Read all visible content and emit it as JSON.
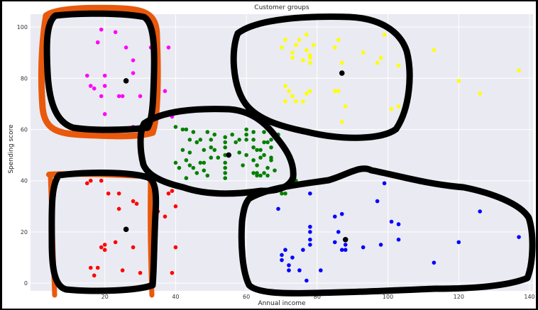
{
  "chart_data": {
    "type": "scatter",
    "title": "Customer groups",
    "xlabel": "Annual income",
    "ylabel": "Spending score",
    "xlim": [
      -1,
      141
    ],
    "ylim": [
      -3,
      105
    ],
    "xticks": [
      20,
      40,
      60,
      80,
      100,
      120,
      140
    ],
    "yticks": [
      0,
      20,
      40,
      60,
      80,
      100
    ],
    "grid": true,
    "background": "#eaeaf2",
    "annotation_color": "#000000",
    "highlight_color": "#e8590c",
    "series": [
      {
        "color": "#ff00ff",
        "points": [
          [
            19,
            99
          ],
          [
            23,
            98
          ],
          [
            18,
            94
          ],
          [
            26,
            92
          ],
          [
            33,
            92
          ],
          [
            38,
            92
          ],
          [
            28,
            87
          ],
          [
            20,
            81
          ],
          [
            15,
            81
          ],
          [
            17,
            76
          ],
          [
            28,
            82
          ],
          [
            34,
            82
          ],
          [
            20,
            77
          ],
          [
            16,
            77
          ],
          [
            19,
            73
          ],
          [
            24,
            73
          ],
          [
            25,
            73
          ],
          [
            30,
            73
          ],
          [
            34,
            73
          ],
          [
            37,
            75
          ],
          [
            20,
            66
          ],
          [
            28,
            61
          ],
          [
            39,
            65
          ]
        ]
      },
      {
        "color": "#ff0000",
        "points": [
          [
            15,
            39
          ],
          [
            16,
            40
          ],
          [
            19,
            40
          ],
          [
            21,
            35
          ],
          [
            24,
            35
          ],
          [
            38,
            35
          ],
          [
            39,
            36
          ],
          [
            24,
            29
          ],
          [
            28,
            32
          ],
          [
            29,
            31
          ],
          [
            35,
            28
          ],
          [
            37,
            26
          ],
          [
            20,
            13
          ],
          [
            20,
            15
          ],
          [
            23,
            16
          ],
          [
            19,
            14
          ],
          [
            28,
            14
          ],
          [
            33,
            15
          ],
          [
            34,
            17
          ],
          [
            40,
            30
          ],
          [
            16,
            6
          ],
          [
            18,
            6
          ],
          [
            25,
            5
          ],
          [
            30,
            4
          ],
          [
            33,
            4
          ],
          [
            17,
            3
          ],
          [
            40,
            14
          ],
          [
            39,
            4
          ]
        ]
      },
      {
        "color": "#008000",
        "points": [
          [
            40,
            61
          ],
          [
            42,
            60
          ],
          [
            43,
            60
          ],
          [
            44,
            56
          ],
          [
            45,
            59
          ],
          [
            46,
            55
          ],
          [
            47,
            56
          ],
          [
            48,
            52
          ],
          [
            49,
            59
          ],
          [
            50,
            56
          ],
          [
            51,
            58
          ],
          [
            42,
            52
          ],
          [
            43,
            48
          ],
          [
            44,
            51
          ],
          [
            45,
            45
          ],
          [
            46,
            43
          ],
          [
            47,
            47
          ],
          [
            48,
            47
          ],
          [
            49,
            42
          ],
          [
            50,
            49
          ],
          [
            51,
            52
          ],
          [
            40,
            47
          ],
          [
            41,
            45
          ],
          [
            43,
            41
          ],
          [
            44,
            46
          ],
          [
            46,
            55
          ],
          [
            48,
            44
          ],
          [
            50,
            53
          ],
          [
            52,
            49
          ],
          [
            54,
            50
          ],
          [
            54,
            47
          ],
          [
            54,
            45
          ],
          [
            54,
            43
          ],
          [
            54,
            41
          ],
          [
            54,
            53
          ],
          [
            54,
            55
          ],
          [
            54,
            57
          ],
          [
            56,
            58
          ],
          [
            57,
            55
          ],
          [
            58,
            56
          ],
          [
            58,
            51
          ],
          [
            59,
            46
          ],
          [
            60,
            50
          ],
          [
            60,
            56
          ],
          [
            60,
            58
          ],
          [
            60,
            60
          ],
          [
            62,
            56
          ],
          [
            62,
            53
          ],
          [
            62,
            48
          ],
          [
            62,
            43
          ],
          [
            62,
            59
          ],
          [
            63,
            52
          ],
          [
            63,
            46
          ],
          [
            63,
            42
          ],
          [
            63,
            43
          ],
          [
            64,
            52
          ],
          [
            64,
            49
          ],
          [
            64,
            42
          ],
          [
            65,
            50
          ],
          [
            65,
            43
          ],
          [
            65,
            55
          ],
          [
            65,
            59
          ],
          [
            66,
            45
          ],
          [
            66,
            42
          ],
          [
            66,
            55
          ],
          [
            67,
            56
          ],
          [
            67,
            49
          ],
          [
            67,
            53
          ],
          [
            67,
            48
          ],
          [
            68,
            44
          ],
          [
            69,
            58
          ],
          [
            70,
            35
          ],
          [
            71,
            35
          ],
          [
            74,
            40
          ]
        ]
      },
      {
        "color": "#ffff00",
        "points": [
          [
            70,
            92
          ],
          [
            71,
            95
          ],
          [
            73,
            90
          ],
          [
            73,
            88
          ],
          [
            74,
            93
          ],
          [
            75,
            95
          ],
          [
            76,
            87
          ],
          [
            77,
            97
          ],
          [
            77,
            91
          ],
          [
            78,
            88
          ],
          [
            78,
            86
          ],
          [
            78,
            89
          ],
          [
            79,
            93
          ],
          [
            71,
            77
          ],
          [
            72,
            75
          ],
          [
            71,
            71
          ],
          [
            73,
            73
          ],
          [
            74,
            71
          ],
          [
            76,
            71
          ],
          [
            77,
            74
          ],
          [
            78,
            75
          ],
          [
            85,
            92
          ],
          [
            86,
            95
          ],
          [
            87,
            86
          ],
          [
            86,
            75
          ],
          [
            85,
            75
          ],
          [
            87,
            63
          ],
          [
            88,
            69
          ],
          [
            93,
            90
          ],
          [
            97,
            86
          ],
          [
            98,
            88
          ],
          [
            99,
            97
          ],
          [
            101,
            68
          ],
          [
            103,
            69
          ],
          [
            103,
            85
          ],
          [
            113,
            91
          ],
          [
            120,
            79
          ],
          [
            126,
            74
          ],
          [
            137,
            83
          ]
        ]
      },
      {
        "color": "#0000ff",
        "points": [
          [
            78,
            35
          ],
          [
            69,
            29
          ],
          [
            70,
            11
          ],
          [
            70,
            9
          ],
          [
            71,
            13
          ],
          [
            72,
            5
          ],
          [
            72,
            7
          ],
          [
            73,
            10
          ],
          [
            75,
            5
          ],
          [
            76,
            13
          ],
          [
            77,
            1
          ],
          [
            78,
            15
          ],
          [
            78,
            17
          ],
          [
            78,
            20
          ],
          [
            78,
            22
          ],
          [
            81,
            5
          ],
          [
            85,
            16
          ],
          [
            85,
            26
          ],
          [
            86,
            20
          ],
          [
            87,
            13
          ],
          [
            87,
            27
          ],
          [
            88,
            13
          ],
          [
            88,
            15
          ],
          [
            93,
            14
          ],
          [
            97,
            32
          ],
          [
            98,
            15
          ],
          [
            99,
            39
          ],
          [
            101,
            24
          ],
          [
            103,
            17
          ],
          [
            103,
            23
          ],
          [
            113,
            8
          ],
          [
            120,
            16
          ],
          [
            126,
            28
          ],
          [
            137,
            18
          ]
        ]
      }
    ],
    "centroids": [
      [
        26,
        79
      ],
      [
        26,
        21
      ],
      [
        55,
        50
      ],
      [
        87,
        82
      ],
      [
        88,
        17
      ]
    ]
  }
}
